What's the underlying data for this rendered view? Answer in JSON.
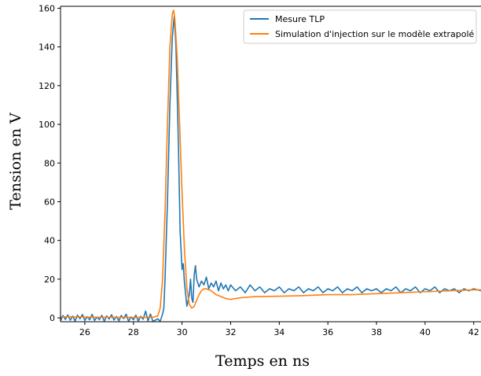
{
  "chart_data": {
    "type": "line",
    "title": "",
    "xlabel": "Temps en ns",
    "ylabel": "Tension en V",
    "xlim": [
      25.0,
      42.3
    ],
    "ylim": [
      -2,
      161
    ],
    "xticks": [
      26,
      28,
      30,
      32,
      34,
      36,
      38,
      40,
      42
    ],
    "yticks": [
      0,
      20,
      40,
      60,
      80,
      100,
      120,
      140,
      160
    ],
    "grid": false,
    "legend_position": "top-right",
    "series": [
      {
        "name": "Mesure TLP",
        "color": "#1f77b4",
        "points": [
          [
            25.0,
            -1.5
          ],
          [
            25.1,
            1.2
          ],
          [
            25.2,
            -0.8
          ],
          [
            25.3,
            1.5
          ],
          [
            25.4,
            -1.2
          ],
          [
            25.5,
            0.9
          ],
          [
            25.6,
            -1.6
          ],
          [
            25.7,
            1.4
          ],
          [
            25.8,
            -0.5
          ],
          [
            25.9,
            1.7
          ],
          [
            26.0,
            -1.3
          ],
          [
            26.1,
            0.6
          ],
          [
            26.2,
            -1.0
          ],
          [
            26.3,
            1.8
          ],
          [
            26.4,
            -1.4
          ],
          [
            26.5,
            0.4
          ],
          [
            26.6,
            -0.9
          ],
          [
            26.7,
            1.3
          ],
          [
            26.8,
            -1.7
          ],
          [
            26.9,
            1.0
          ],
          [
            27.0,
            -0.6
          ],
          [
            27.1,
            1.6
          ],
          [
            27.2,
            -1.1
          ],
          [
            27.3,
            0.7
          ],
          [
            27.4,
            -1.5
          ],
          [
            27.5,
            1.2
          ],
          [
            27.6,
            -0.4
          ],
          [
            27.7,
            1.9
          ],
          [
            27.8,
            -1.8
          ],
          [
            27.9,
            0.5
          ],
          [
            28.0,
            -1.0
          ],
          [
            28.1,
            1.4
          ],
          [
            28.2,
            -1.6
          ],
          [
            28.3,
            0.8
          ],
          [
            28.4,
            -0.7
          ],
          [
            28.5,
            3.5
          ],
          [
            28.6,
            -1.5
          ],
          [
            28.7,
            2.0
          ],
          [
            28.8,
            -1.8
          ],
          [
            28.9,
            -1.2
          ],
          [
            29.0,
            -0.5
          ],
          [
            29.1,
            -1.8
          ],
          [
            29.2,
            2.0
          ],
          [
            29.25,
            5.0
          ],
          [
            29.3,
            20.0
          ],
          [
            29.4,
            60.0
          ],
          [
            29.5,
            110.0
          ],
          [
            29.6,
            145.0
          ],
          [
            29.68,
            156.0
          ],
          [
            29.75,
            140.0
          ],
          [
            29.85,
            90.0
          ],
          [
            29.92,
            45.0
          ],
          [
            30.0,
            25.0
          ],
          [
            30.05,
            28.0
          ],
          [
            30.1,
            18.0
          ],
          [
            30.15,
            12.0
          ],
          [
            30.2,
            6.0
          ],
          [
            30.25,
            9.0
          ],
          [
            30.3,
            12.0
          ],
          [
            30.35,
            20.0
          ],
          [
            30.4,
            10.0
          ],
          [
            30.45,
            8.0
          ],
          [
            30.5,
            22.0
          ],
          [
            30.55,
            27.0
          ],
          [
            30.6,
            20.0
          ],
          [
            30.7,
            16.0
          ],
          [
            30.8,
            19.0
          ],
          [
            30.9,
            17.0
          ],
          [
            31.0,
            21.0
          ],
          [
            31.1,
            15.0
          ],
          [
            31.2,
            18.0
          ],
          [
            31.3,
            16.0
          ],
          [
            31.4,
            19.0
          ],
          [
            31.5,
            14.0
          ],
          [
            31.6,
            18.0
          ],
          [
            31.7,
            15.0
          ],
          [
            31.8,
            17.0
          ],
          [
            31.9,
            14.0
          ],
          [
            32.0,
            17.0
          ],
          [
            32.2,
            14.0
          ],
          [
            32.4,
            16.0
          ],
          [
            32.6,
            13.0
          ],
          [
            32.8,
            17.0
          ],
          [
            33.0,
            14.0
          ],
          [
            33.2,
            16.0
          ],
          [
            33.4,
            13.0
          ],
          [
            33.6,
            15.0
          ],
          [
            33.8,
            14.0
          ],
          [
            34.0,
            16.0
          ],
          [
            34.2,
            13.0
          ],
          [
            34.4,
            15.0
          ],
          [
            34.6,
            14.0
          ],
          [
            34.8,
            16.0
          ],
          [
            35.0,
            13.0
          ],
          [
            35.2,
            15.0
          ],
          [
            35.4,
            14.0
          ],
          [
            35.6,
            16.0
          ],
          [
            35.8,
            13.0
          ],
          [
            36.0,
            15.0
          ],
          [
            36.2,
            14.0
          ],
          [
            36.4,
            16.0
          ],
          [
            36.6,
            13.0
          ],
          [
            36.8,
            15.0
          ],
          [
            37.0,
            14.0
          ],
          [
            37.2,
            16.0
          ],
          [
            37.4,
            13.0
          ],
          [
            37.6,
            15.0
          ],
          [
            37.8,
            14.0
          ],
          [
            38.0,
            15.0
          ],
          [
            38.2,
            13.0
          ],
          [
            38.4,
            15.0
          ],
          [
            38.6,
            14.0
          ],
          [
            38.8,
            16.0
          ],
          [
            39.0,
            13.0
          ],
          [
            39.2,
            15.0
          ],
          [
            39.4,
            14.0
          ],
          [
            39.6,
            16.0
          ],
          [
            39.8,
            13.0
          ],
          [
            40.0,
            15.0
          ],
          [
            40.2,
            14.0
          ],
          [
            40.4,
            16.0
          ],
          [
            40.6,
            13.0
          ],
          [
            40.8,
            15.0
          ],
          [
            41.0,
            14.0
          ],
          [
            41.2,
            15.0
          ],
          [
            41.4,
            13.0
          ],
          [
            41.6,
            15.0
          ],
          [
            41.8,
            14.0
          ],
          [
            42.0,
            15.0
          ],
          [
            42.3,
            14.0
          ]
        ]
      },
      {
        "name": "Simulation d'injection sur le modèle extrapolé",
        "color": "#ff7f0e",
        "points": [
          [
            25.0,
            0.5
          ],
          [
            26.0,
            0.4
          ],
          [
            27.0,
            0.3
          ],
          [
            28.0,
            0.2
          ],
          [
            28.8,
            0.3
          ],
          [
            29.0,
            1.0
          ],
          [
            29.1,
            5.0
          ],
          [
            29.2,
            20.0
          ],
          [
            29.3,
            55.0
          ],
          [
            29.4,
            100.0
          ],
          [
            29.5,
            140.0
          ],
          [
            29.6,
            157.0
          ],
          [
            29.65,
            159.0
          ],
          [
            29.7,
            155.0
          ],
          [
            29.8,
            135.0
          ],
          [
            29.9,
            100.0
          ],
          [
            30.0,
            65.0
          ],
          [
            30.1,
            35.0
          ],
          [
            30.2,
            15.0
          ],
          [
            30.3,
            7.0
          ],
          [
            30.4,
            5.0
          ],
          [
            30.5,
            6.0
          ],
          [
            30.6,
            9.0
          ],
          [
            30.7,
            12.0
          ],
          [
            30.8,
            14.0
          ],
          [
            30.9,
            15.0
          ],
          [
            31.0,
            15.0
          ],
          [
            31.2,
            14.0
          ],
          [
            31.4,
            12.0
          ],
          [
            31.6,
            11.0
          ],
          [
            31.8,
            10.0
          ],
          [
            32.0,
            9.5
          ],
          [
            32.2,
            10.0
          ],
          [
            32.5,
            10.5
          ],
          [
            33.0,
            11.0
          ],
          [
            34.0,
            11.2
          ],
          [
            35.0,
            11.5
          ],
          [
            36.0,
            12.0
          ],
          [
            37.0,
            12.0
          ],
          [
            38.0,
            12.5
          ],
          [
            39.0,
            13.0
          ],
          [
            40.0,
            13.5
          ],
          [
            41.0,
            14.0
          ],
          [
            42.0,
            14.5
          ],
          [
            42.3,
            14.5
          ]
        ]
      }
    ]
  }
}
